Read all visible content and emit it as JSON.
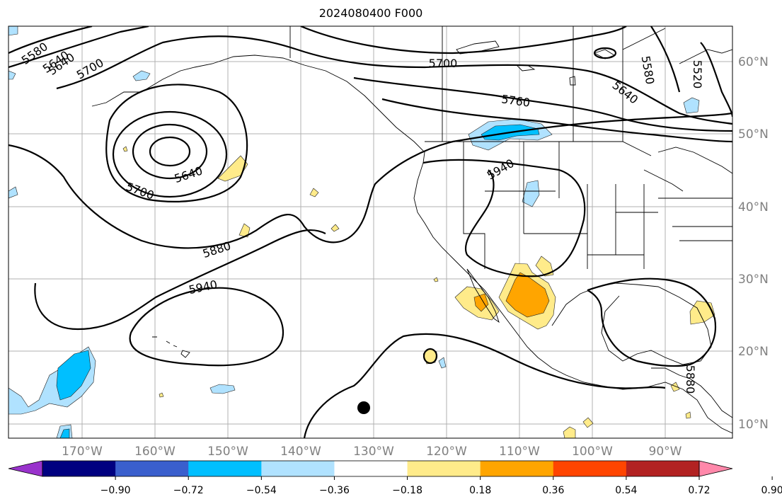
{
  "title": "2024080400 F000",
  "map": {
    "lon_labels": [
      "170°W",
      "160°W",
      "150°W",
      "140°W",
      "130°W",
      "120°W",
      "110°W",
      "100°W",
      "90°W"
    ],
    "lat_labels": [
      "60°N",
      "50°N",
      "40°N",
      "30°N",
      "20°N",
      "10°N"
    ],
    "contour_labels": [
      "5580",
      "5640",
      "5700",
      "5700",
      "5640",
      "5760",
      "5640",
      "5580",
      "5520",
      "5700",
      "5640",
      "5940",
      "5880",
      "5940",
      "5880"
    ],
    "storm_marker": "filled-circle"
  },
  "colorbar": {
    "tick_labels": [
      "−0.90",
      "−0.72",
      "−0.54",
      "−0.36",
      "−0.18",
      "0.18",
      "0.36",
      "0.54",
      "0.72",
      "0.90"
    ],
    "colors": [
      "#9932CC",
      "#000080",
      "#3A5FCD",
      "#00BFFF",
      "#B0E2FF",
      "#FFFFFF",
      "#FFEB8A",
      "#FFA500",
      "#FF4500",
      "#B22222",
      "#FF88AA"
    ]
  }
}
